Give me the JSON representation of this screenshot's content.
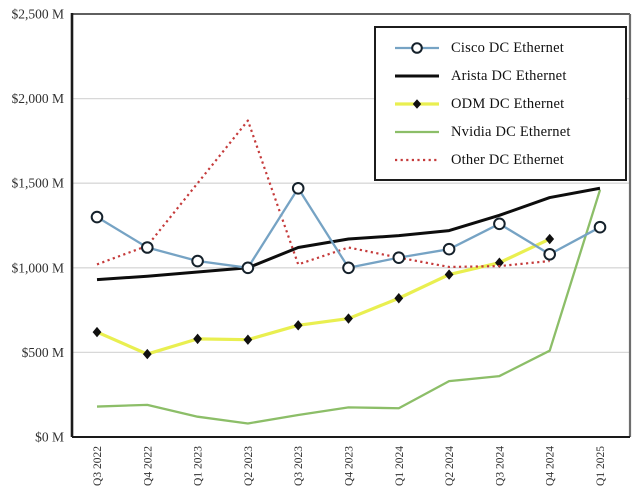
{
  "page": {
    "background": "#ffffff"
  },
  "axes": {
    "grid_color": "#d8d8d8",
    "axis_color": "#1a1a1a",
    "top_border_color": "#2a2a2a",
    "right_border_color": "#6e6e6e",
    "tick_label_color": "#2f2f2f"
  },
  "chart_data": {
    "type": "line",
    "title": "",
    "xlabel": "",
    "ylabel": "",
    "ylim": [
      0,
      2500
    ],
    "grid": true,
    "legend_position": "top-right",
    "ytick_values": [
      0,
      500,
      1000,
      1500,
      2000,
      2500
    ],
    "ytick_labels": [
      "$0 M",
      "$500 M",
      "$1,000 M",
      "$1,500 M",
      "$2,000 M",
      "$2,500 M"
    ],
    "categories": [
      "Q3 2022",
      "Q4 2022",
      "Q1 2023",
      "Q2 2023",
      "Q3 2023",
      "Q4 2023",
      "Q1 2024",
      "Q2 2024",
      "Q3 2024",
      "Q4 2024",
      "Q1 2025"
    ],
    "series": [
      {
        "name": "Cisco DC Ethernet",
        "color": "#76a3c4",
        "line_style": "solid",
        "width": 2.3,
        "marker": "circle",
        "marker_color": "#15212b",
        "values": [
          1300,
          1120,
          1040,
          1000,
          1470,
          1000,
          1060,
          1110,
          1260,
          1080,
          1240
        ]
      },
      {
        "name": "Arista DC Ethernet",
        "color": "#0d0d0d",
        "line_style": "solid",
        "width": 3,
        "marker": "none",
        "marker_color": "#0d0d0d",
        "values": [
          930,
          950,
          975,
          1000,
          1120,
          1170,
          1190,
          1220,
          1310,
          1415,
          1470
        ]
      },
      {
        "name": "ODM DC Ethernet",
        "color": "#e9ef50",
        "line_style": "solid",
        "width": 3.2,
        "marker": "diamond",
        "marker_color": "#101010",
        "values": [
          620,
          490,
          580,
          575,
          660,
          700,
          820,
          960,
          1030,
          1170,
          null
        ]
      },
      {
        "name": "Nvidia DC Ethernet",
        "color": "#8cbe68",
        "line_style": "solid",
        "width": 2.3,
        "marker": "none",
        "marker_color": "#8cbe68",
        "values": [
          180,
          190,
          120,
          80,
          130,
          175,
          170,
          330,
          360,
          510,
          1460
        ]
      },
      {
        "name": "Other DC Ethernet",
        "color": "#c53b3b",
        "line_style": "dotted",
        "width": 2.2,
        "marker": "none",
        "marker_color": "#c53b3b",
        "values": [
          1020,
          1130,
          1500,
          1870,
          1020,
          1120,
          1060,
          1005,
          1010,
          1040,
          null
        ]
      }
    ]
  }
}
